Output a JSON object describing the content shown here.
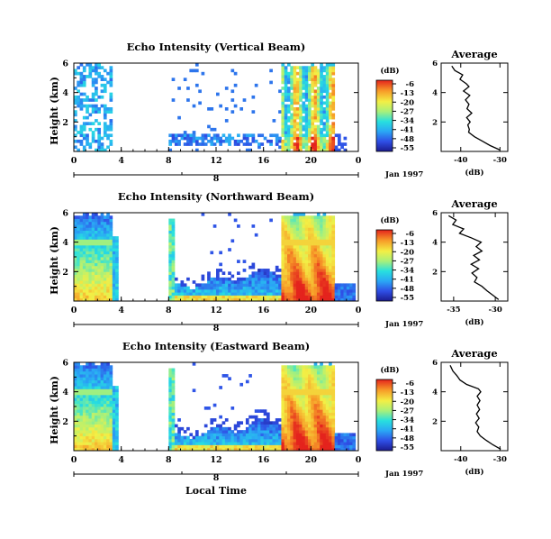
{
  "figure": {
    "date_label": "Jan 1997",
    "day_label": "8",
    "x_axis_title": "Local Time"
  },
  "chart_data": [
    {
      "type": "heatmap",
      "title": "Echo Intensity (Vertical Beam)",
      "ylabel": "Height (km)",
      "xlabel": "Local Time",
      "x_ticks": [
        "0",
        "4",
        "8",
        "12",
        "16",
        "20",
        "0"
      ],
      "y_ticks": [
        "2",
        "4",
        "6"
      ],
      "xlim": [
        0,
        24
      ],
      "ylim": [
        0,
        6
      ],
      "colorbar": {
        "label": "(dB)",
        "ticks": [
          "-6",
          "-13",
          "-20",
          "-27",
          "-34",
          "-41",
          "-48",
          "-55"
        ]
      },
      "pattern": "vertical"
    },
    {
      "type": "line",
      "title": "Average",
      "xlabel": "(dB)",
      "x_ticks": [
        "-40",
        "-30"
      ],
      "y_ticks": [
        "2",
        "4",
        "6"
      ],
      "xlim": [
        -45,
        -28
      ],
      "ylim": [
        0,
        6
      ],
      "points": [
        [
          -30,
          0.1
        ],
        [
          -32.5,
          0.4
        ],
        [
          -34.5,
          0.7
        ],
        [
          -36.5,
          1.0
        ],
        [
          -38,
          1.3
        ],
        [
          -37.8,
          1.5
        ],
        [
          -38.2,
          1.8
        ],
        [
          -37.6,
          2.0
        ],
        [
          -38.5,
          2.3
        ],
        [
          -37.2,
          2.6
        ],
        [
          -38.4,
          2.9
        ],
        [
          -37.9,
          3.2
        ],
        [
          -38.8,
          3.5
        ],
        [
          -37.7,
          3.8
        ],
        [
          -39.3,
          4.1
        ],
        [
          -37.9,
          4.4
        ],
        [
          -38.6,
          4.6
        ],
        [
          -40.2,
          4.9
        ],
        [
          -39.5,
          5.2
        ],
        [
          -41.5,
          5.5
        ],
        [
          -42.3,
          5.8
        ]
      ]
    },
    {
      "type": "heatmap",
      "title": "Echo Intensity (Northward Beam)",
      "ylabel": "Height (km)",
      "xlabel": "Local Time",
      "x_ticks": [
        "0",
        "4",
        "8",
        "12",
        "16",
        "20",
        "0"
      ],
      "y_ticks": [
        "2",
        "4",
        "6"
      ],
      "xlim": [
        0,
        24
      ],
      "ylim": [
        0,
        6
      ],
      "colorbar": {
        "label": "(dB)",
        "ticks": [
          "-6",
          "-13",
          "-20",
          "-27",
          "-34",
          "-41",
          "-48",
          "-55"
        ]
      },
      "pattern": "oblique"
    },
    {
      "type": "line",
      "title": "Average",
      "xlabel": "(dB)",
      "x_ticks": [
        "-35",
        "-30"
      ],
      "y_ticks": [
        "2",
        "4",
        "6"
      ],
      "xlim": [
        -36.5,
        -28.5
      ],
      "ylim": [
        0,
        6
      ],
      "points": [
        [
          -29.6,
          0.1
        ],
        [
          -30.3,
          0.4
        ],
        [
          -31.0,
          0.7
        ],
        [
          -31.6,
          1.0
        ],
        [
          -32.5,
          1.3
        ],
        [
          -32.2,
          1.6
        ],
        [
          -32.8,
          1.9
        ],
        [
          -32.0,
          2.2
        ],
        [
          -32.9,
          2.5
        ],
        [
          -31.9,
          2.8
        ],
        [
          -32.6,
          3.1
        ],
        [
          -31.6,
          3.4
        ],
        [
          -32.3,
          3.7
        ],
        [
          -31.7,
          4.0
        ],
        [
          -32.9,
          4.3
        ],
        [
          -34.3,
          4.6
        ],
        [
          -33.8,
          4.9
        ],
        [
          -35.1,
          5.2
        ],
        [
          -34.7,
          5.5
        ],
        [
          -35.6,
          5.8
        ]
      ]
    },
    {
      "type": "heatmap",
      "title": "Echo Intensity (Eastward Beam)",
      "ylabel": "Height (km)",
      "xlabel": "Local Time",
      "x_ticks": [
        "0",
        "4",
        "8",
        "12",
        "16",
        "20",
        "0"
      ],
      "y_ticks": [
        "2",
        "4",
        "6"
      ],
      "xlim": [
        0,
        24
      ],
      "ylim": [
        0,
        6
      ],
      "colorbar": {
        "label": "(dB)",
        "ticks": [
          "-6",
          "-13",
          "-20",
          "-27",
          "-34",
          "-41",
          "-48",
          "-55"
        ]
      },
      "pattern": "oblique"
    },
    {
      "type": "line",
      "title": "Average",
      "xlabel": "(dB)",
      "x_ticks": [
        "-40",
        "-30"
      ],
      "y_ticks": [
        "2",
        "4",
        "6"
      ],
      "xlim": [
        -45,
        -28
      ],
      "ylim": [
        0,
        6
      ],
      "points": [
        [
          -29.8,
          0.1
        ],
        [
          -31.8,
          0.4
        ],
        [
          -33.5,
          0.7
        ],
        [
          -35.0,
          1.0
        ],
        [
          -35.8,
          1.3
        ],
        [
          -35.4,
          1.6
        ],
        [
          -36.2,
          1.9
        ],
        [
          -35.3,
          2.2
        ],
        [
          -36.0,
          2.5
        ],
        [
          -35.2,
          2.8
        ],
        [
          -35.8,
          3.1
        ],
        [
          -35.1,
          3.4
        ],
        [
          -35.8,
          3.7
        ],
        [
          -34.9,
          4.0
        ],
        [
          -35.5,
          4.2
        ],
        [
          -38.5,
          4.5
        ],
        [
          -40.2,
          4.8
        ],
        [
          -41.0,
          5.1
        ],
        [
          -42.0,
          5.4
        ],
        [
          -42.7,
          5.8
        ]
      ]
    }
  ]
}
